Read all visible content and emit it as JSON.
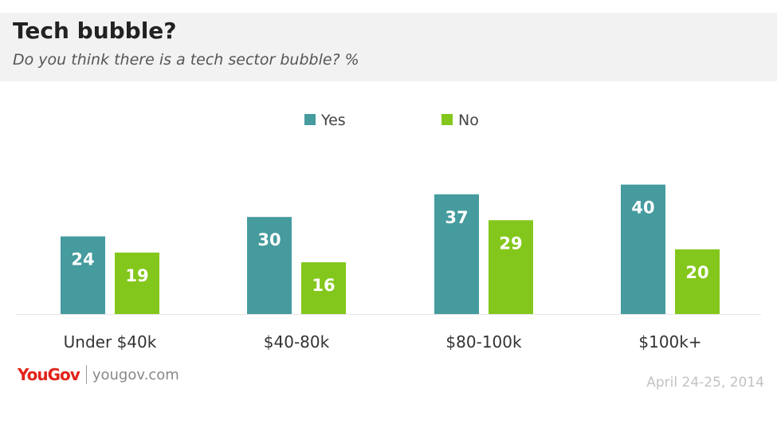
{
  "header": {
    "title": "Tech bubble?",
    "subtitle": "Do you think there is a tech sector bubble? %"
  },
  "footer": {
    "logo": "YouGov",
    "url": "yougov.com",
    "date": "April 24-25, 2014"
  },
  "chart_data": {
    "type": "bar",
    "title": "Tech bubble?",
    "subtitle": "Do you think there is a tech sector bubble? %",
    "xlabel": "",
    "ylabel": "",
    "categories": [
      "Under $40k",
      "$40-80k",
      "$80-100k",
      "$100k+"
    ],
    "series": [
      {
        "name": "Yes",
        "color": "#459b9e",
        "values": [
          24,
          30,
          37,
          40
        ]
      },
      {
        "name": "No",
        "color": "#84c71c",
        "values": [
          19,
          16,
          29,
          20
        ]
      }
    ],
    "ylim": [
      0,
      40
    ],
    "legend_position": "top-center",
    "grid": false,
    "data_labels": true
  }
}
